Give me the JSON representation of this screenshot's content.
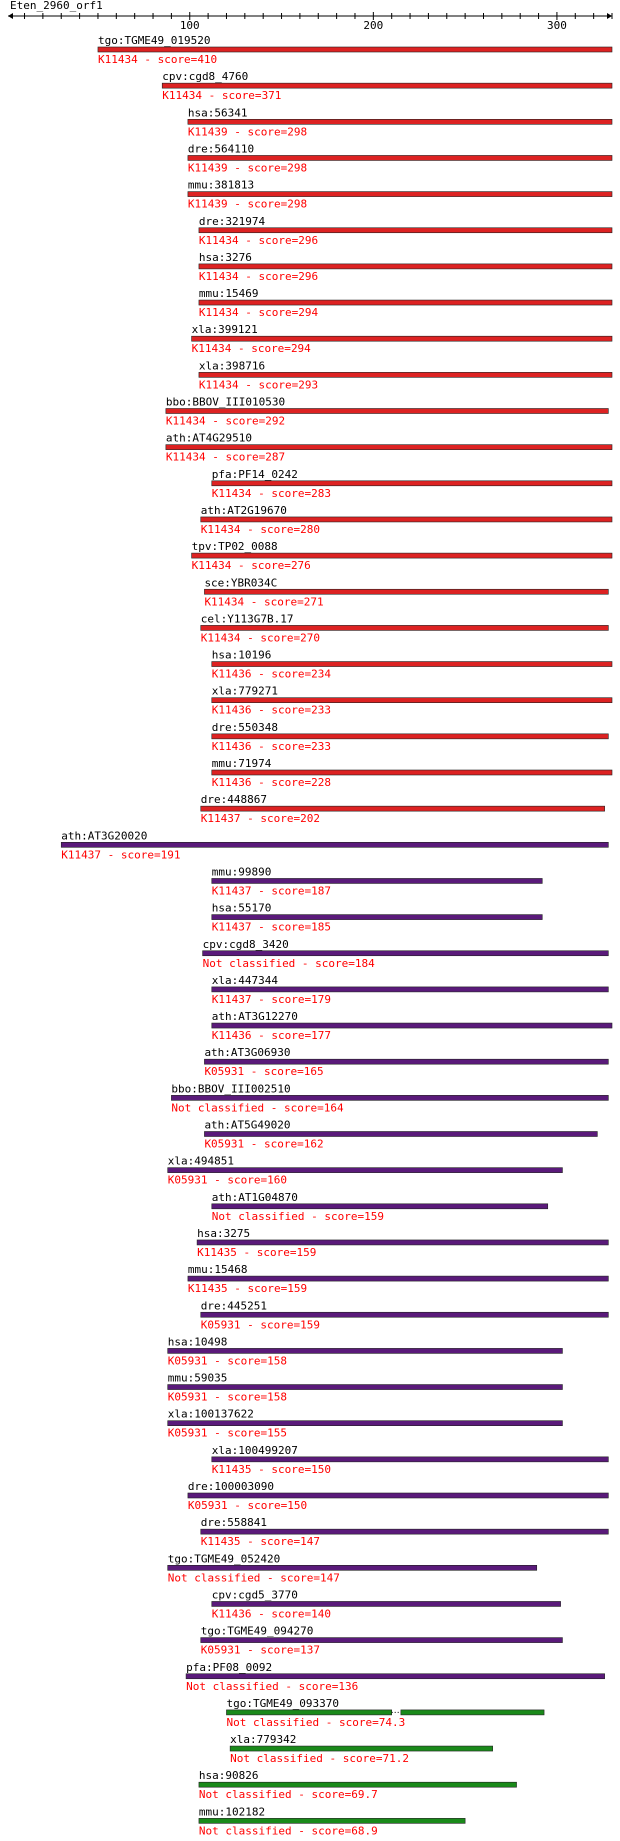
{
  "query": {
    "title": "Eten_2960_orf1",
    "ruler": {
      "min": 1,
      "max": 330,
      "tick_labels": [
        100,
        200,
        300
      ]
    }
  },
  "colors": {
    "high": "#dd2222",
    "mid": "#5a1a7a",
    "low": "#1a8a1a",
    "label": "#000000",
    "score": "#ff0000"
  },
  "hits": [
    {
      "id": "tgo:TGME49_019520",
      "ko": "K11434",
      "score": "410",
      "start": 50,
      "end": 330,
      "tier": "high"
    },
    {
      "id": "cpv:cgd8_4760",
      "ko": "K11434",
      "score": "371",
      "start": 85,
      "end": 330,
      "tier": "high"
    },
    {
      "id": "hsa:56341",
      "ko": "K11439",
      "score": "298",
      "start": 99,
      "end": 330,
      "tier": "high"
    },
    {
      "id": "dre:564110",
      "ko": "K11439",
      "score": "298",
      "start": 99,
      "end": 330,
      "tier": "high"
    },
    {
      "id": "mmu:381813",
      "ko": "K11439",
      "score": "298",
      "start": 99,
      "end": 330,
      "tier": "high"
    },
    {
      "id": "dre:321974",
      "ko": "K11434",
      "score": "296",
      "start": 105,
      "end": 330,
      "tier": "high"
    },
    {
      "id": "hsa:3276",
      "ko": "K11434",
      "score": "296",
      "start": 105,
      "end": 330,
      "tier": "high"
    },
    {
      "id": "mmu:15469",
      "ko": "K11434",
      "score": "294",
      "start": 105,
      "end": 330,
      "tier": "high"
    },
    {
      "id": "xla:399121",
      "ko": "K11434",
      "score": "294",
      "start": 101,
      "end": 330,
      "tier": "high"
    },
    {
      "id": "xla:398716",
      "ko": "K11434",
      "score": "293",
      "start": 105,
      "end": 330,
      "tier": "high"
    },
    {
      "id": "bbo:BBOV_III010530",
      "ko": "K11434",
      "score": "292",
      "start": 87,
      "end": 328,
      "tier": "high"
    },
    {
      "id": "ath:AT4G29510",
      "ko": "K11434",
      "score": "287",
      "start": 87,
      "end": 330,
      "tier": "high"
    },
    {
      "id": "pfa:PF14_0242",
      "ko": "K11434",
      "score": "283",
      "start": 112,
      "end": 330,
      "tier": "high"
    },
    {
      "id": "ath:AT2G19670",
      "ko": "K11434",
      "score": "280",
      "start": 106,
      "end": 330,
      "tier": "high"
    },
    {
      "id": "tpv:TP02_0088",
      "ko": "K11434",
      "score": "276",
      "start": 101,
      "end": 330,
      "tier": "high"
    },
    {
      "id": "sce:YBR034C",
      "ko": "K11434",
      "score": "271",
      "start": 108,
      "end": 328,
      "tier": "high"
    },
    {
      "id": "cel:Y113G7B.17",
      "ko": "K11434",
      "score": "270",
      "start": 106,
      "end": 328,
      "tier": "high"
    },
    {
      "id": "hsa:10196",
      "ko": "K11436",
      "score": "234",
      "start": 112,
      "end": 330,
      "tier": "high"
    },
    {
      "id": "xla:779271",
      "ko": "K11436",
      "score": "233",
      "start": 112,
      "end": 330,
      "tier": "high"
    },
    {
      "id": "dre:550348",
      "ko": "K11436",
      "score": "233",
      "start": 112,
      "end": 328,
      "tier": "high"
    },
    {
      "id": "mmu:71974",
      "ko": "K11436",
      "score": "228",
      "start": 112,
      "end": 330,
      "tier": "high"
    },
    {
      "id": "dre:448867",
      "ko": "K11437",
      "score": "202",
      "start": 106,
      "end": 326,
      "tier": "high"
    },
    {
      "id": "ath:AT3G20020",
      "ko": "K11437",
      "score": "191",
      "start": 30,
      "end": 328,
      "tier": "mid"
    },
    {
      "id": "mmu:99890",
      "ko": "K11437",
      "score": "187",
      "start": 112,
      "end": 292,
      "tier": "mid"
    },
    {
      "id": "hsa:55170",
      "ko": "K11437",
      "score": "185",
      "start": 112,
      "end": 292,
      "tier": "mid"
    },
    {
      "id": "cpv:cgd8_3420",
      "ko": "Not classified",
      "score": "184",
      "start": 107,
      "end": 328,
      "tier": "mid"
    },
    {
      "id": "xla:447344",
      "ko": "K11437",
      "score": "179",
      "start": 112,
      "end": 328,
      "tier": "mid"
    },
    {
      "id": "ath:AT3G12270",
      "ko": "K11436",
      "score": "177",
      "start": 112,
      "end": 330,
      "tier": "mid"
    },
    {
      "id": "ath:AT3G06930",
      "ko": "K05931",
      "score": "165",
      "start": 108,
      "end": 328,
      "tier": "mid"
    },
    {
      "id": "bbo:BBOV_III002510",
      "ko": "Not classified",
      "score": "164",
      "start": 90,
      "end": 328,
      "tier": "mid"
    },
    {
      "id": "ath:AT5G49020",
      "ko": "K05931",
      "score": "162",
      "start": 108,
      "end": 322,
      "tier": "mid"
    },
    {
      "id": "xla:494851",
      "ko": "K05931",
      "score": "160",
      "start": 88,
      "end": 303,
      "tier": "mid"
    },
    {
      "id": "ath:AT1G04870",
      "ko": "Not classified",
      "score": "159",
      "start": 112,
      "end": 295,
      "tier": "mid"
    },
    {
      "id": "hsa:3275",
      "ko": "K11435",
      "score": "159",
      "start": 104,
      "end": 328,
      "tier": "mid"
    },
    {
      "id": "mmu:15468",
      "ko": "K11435",
      "score": "159",
      "start": 99,
      "end": 328,
      "tier": "mid"
    },
    {
      "id": "dre:445251",
      "ko": "K05931",
      "score": "159",
      "start": 106,
      "end": 328,
      "tier": "mid"
    },
    {
      "id": "hsa:10498",
      "ko": "K05931",
      "score": "158",
      "start": 88,
      "end": 303,
      "tier": "mid"
    },
    {
      "id": "mmu:59035",
      "ko": "K05931",
      "score": "158",
      "start": 88,
      "end": 303,
      "tier": "mid"
    },
    {
      "id": "xla:100137622",
      "ko": "K05931",
      "score": "155",
      "start": 88,
      "end": 303,
      "tier": "mid"
    },
    {
      "id": "xla:100499207",
      "ko": "K11435",
      "score": "150",
      "start": 112,
      "end": 328,
      "tier": "mid"
    },
    {
      "id": "dre:100003090",
      "ko": "K05931",
      "score": "150",
      "start": 99,
      "end": 328,
      "tier": "mid"
    },
    {
      "id": "dre:558841",
      "ko": "K11435",
      "score": "147",
      "start": 106,
      "end": 328,
      "tier": "mid"
    },
    {
      "id": "tgo:TGME49_052420",
      "ko": "Not classified",
      "score": "147",
      "start": 88,
      "end": 289,
      "tier": "mid"
    },
    {
      "id": "cpv:cgd5_3770",
      "ko": "K11436",
      "score": "140",
      "start": 112,
      "end": 302,
      "tier": "mid"
    },
    {
      "id": "tgo:TGME49_094270",
      "ko": "K05931",
      "score": "137",
      "start": 106,
      "end": 303,
      "tier": "mid"
    },
    {
      "id": "pfa:PF08_0092",
      "ko": "Not classified",
      "score": "136",
      "start": 98,
      "end": 326,
      "tier": "mid"
    },
    {
      "id": "tgo:TGME49_093370",
      "ko": "Not classified",
      "score": "74.3",
      "start": 120,
      "end": 293,
      "tier": "low",
      "gap": [
        210,
        215
      ]
    },
    {
      "id": "xla:779342",
      "ko": "Not classified",
      "score": "71.2",
      "start": 122,
      "end": 265,
      "tier": "low"
    },
    {
      "id": "hsa:90826",
      "ko": "Not classified",
      "score": "69.7",
      "start": 105,
      "end": 278,
      "tier": "low"
    },
    {
      "id": "mmu:102182",
      "ko": "Not classified",
      "score": "68.9",
      "start": 105,
      "end": 250,
      "tier": "low"
    }
  ]
}
